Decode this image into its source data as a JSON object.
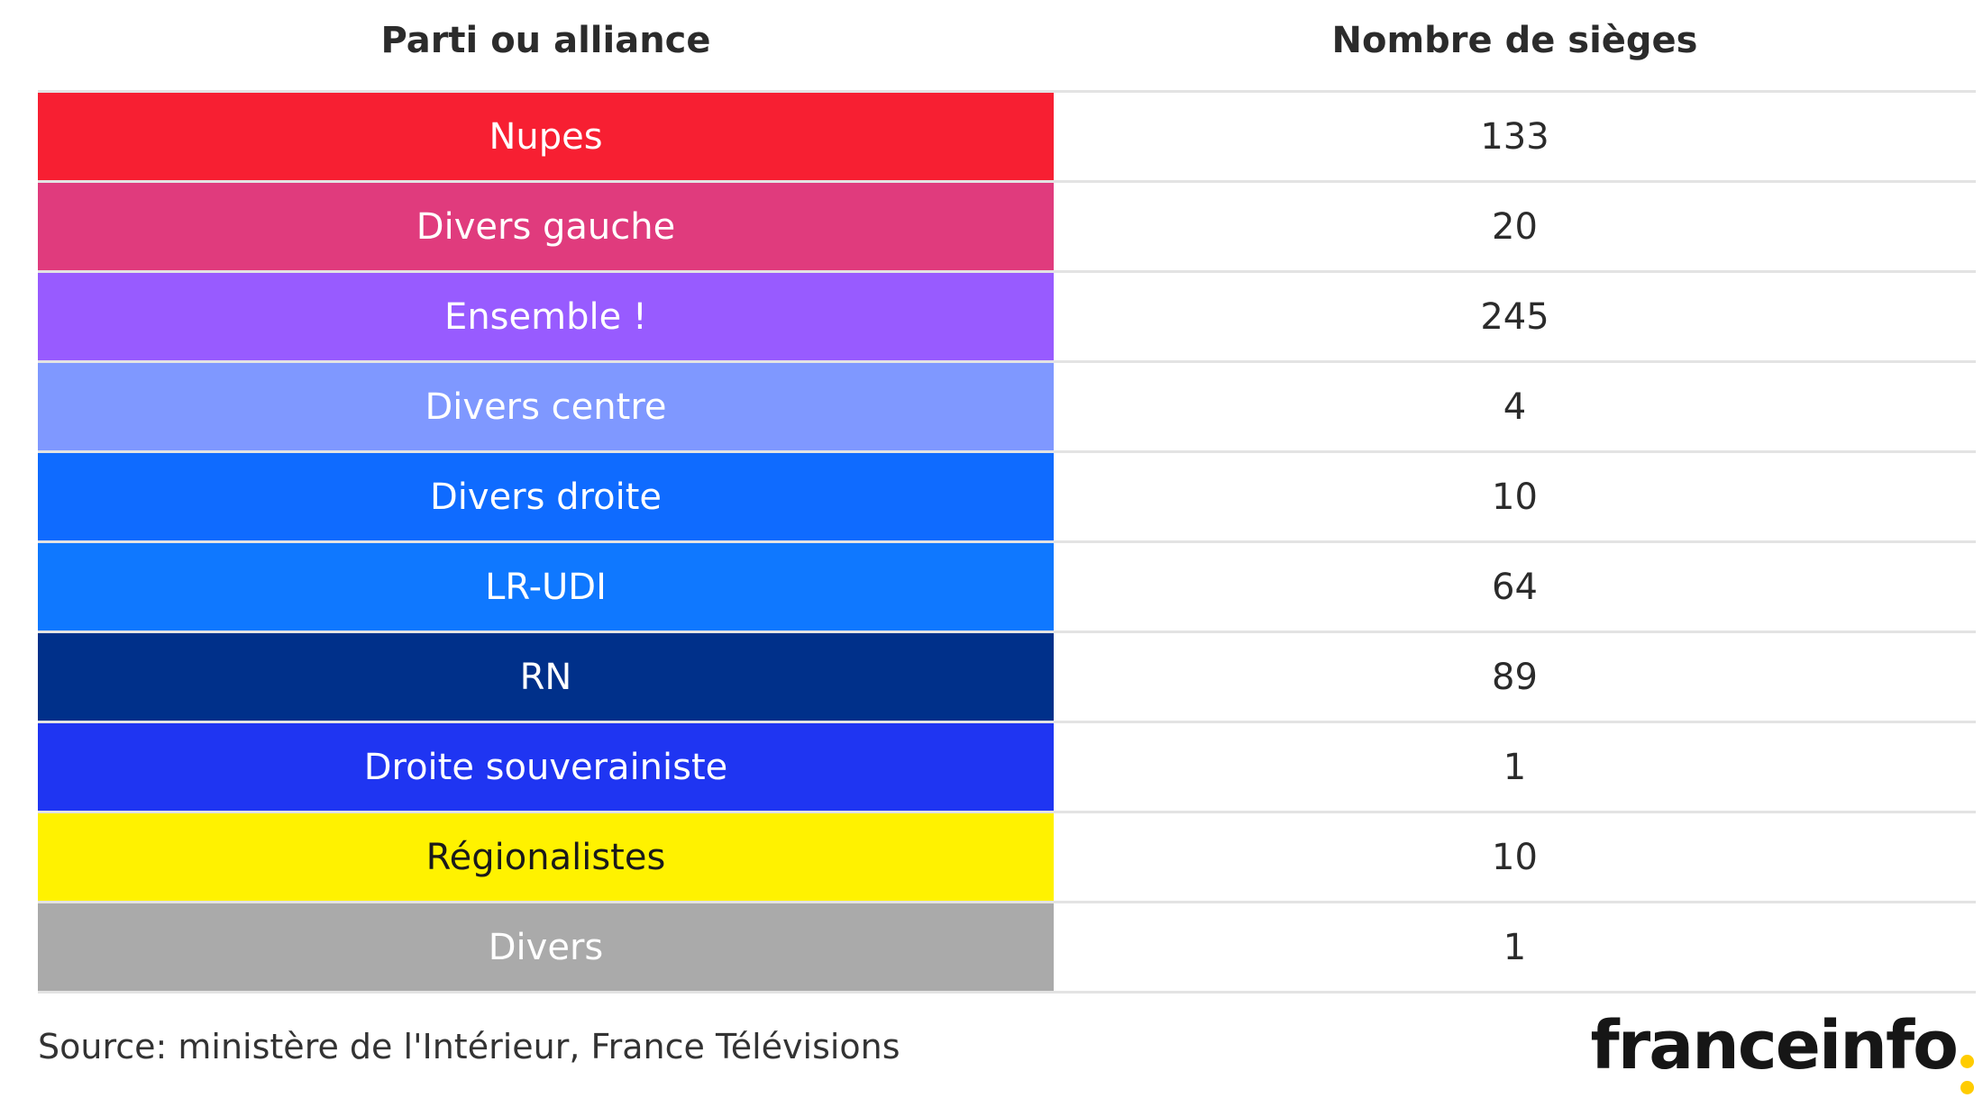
{
  "chart_data": {
    "type": "table",
    "columns": [
      "Parti ou alliance",
      "Nombre de sièges"
    ],
    "rows": [
      {
        "party": "Nupes",
        "seats": "133",
        "color": "#f71f32",
        "text_color": "#ffffff"
      },
      {
        "party": "Divers gauche",
        "seats": "20",
        "color": "#e03b7d",
        "text_color": "#ffffff"
      },
      {
        "party": "Ensemble !",
        "seats": "245",
        "color": "#985bff",
        "text_color": "#ffffff"
      },
      {
        "party": "Divers centre",
        "seats": "4",
        "color": "#7f98ff",
        "text_color": "#ffffff"
      },
      {
        "party": "Divers droite",
        "seats": "10",
        "color": "#0f6bff",
        "text_color": "#ffffff"
      },
      {
        "party": "LR-UDI",
        "seats": "64",
        "color": "#0f78ff",
        "text_color": "#ffffff"
      },
      {
        "party": "RN",
        "seats": "89",
        "color": "#00308a",
        "text_color": "#ffffff"
      },
      {
        "party": "Droite souverainiste",
        "seats": "1",
        "color": "#1f35f2",
        "text_color": "#ffffff"
      },
      {
        "party": "Régionalistes",
        "seats": "10",
        "color": "#fff200",
        "text_color": "#1a1a1a"
      },
      {
        "party": "Divers",
        "seats": "1",
        "color": "#aaaaaa",
        "text_color": "#ffffff"
      }
    ]
  },
  "footer": {
    "source": "Source: ministère de l'Intérieur, France Télévisions"
  },
  "logo": {
    "text": "franceinfo",
    "accent": "#ffcc00"
  }
}
